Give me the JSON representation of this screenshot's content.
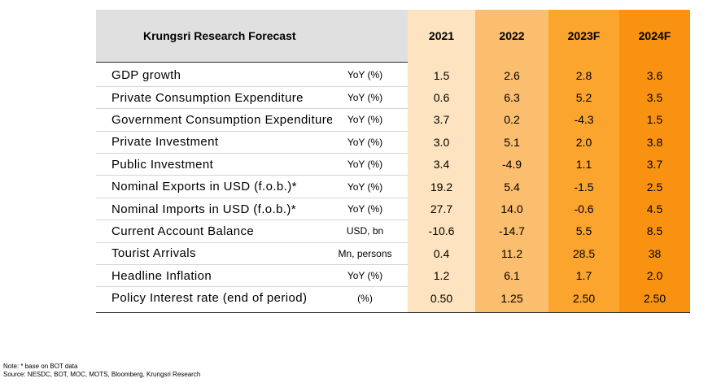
{
  "table": {
    "title": "Krungsri Research Forecast",
    "years": [
      "2021",
      "2022",
      "2023F",
      "2024F"
    ],
    "colors": {
      "header_bg": "#e0e0e0",
      "col_2021": "#fde3bf",
      "col_2022": "#fbbd6e",
      "col_2023F": "#fba42e",
      "col_2024F": "#fa9211"
    },
    "rows": [
      {
        "label": "GDP growth",
        "unit": "YoY (%)",
        "values": [
          "1.5",
          "2.6",
          "2.8",
          "3.6"
        ]
      },
      {
        "label": "Private Consumption Expenditure",
        "unit": "YoY (%)",
        "values": [
          "0.6",
          "6.3",
          "5.2",
          "3.5"
        ]
      },
      {
        "label": "Government Consumption Expenditure",
        "unit": "YoY (%)",
        "values": [
          "3.7",
          "0.2",
          "-4.3",
          "1.5"
        ]
      },
      {
        "label": "Private Investment",
        "unit": "YoY (%)",
        "values": [
          "3.0",
          "5.1",
          "2.0",
          "3.8"
        ]
      },
      {
        "label": "Public Investment",
        "unit": "YoY (%)",
        "values": [
          "3.4",
          "-4.9",
          "1.1",
          "3.7"
        ]
      },
      {
        "label": "Nominal Exports in USD (f.o.b.)*",
        "unit": "YoY (%)",
        "values": [
          "19.2",
          "5.4",
          "-1.5",
          "2.5"
        ]
      },
      {
        "label": "Nominal Imports in USD (f.o.b.)*",
        "unit": "YoY (%)",
        "values": [
          "27.7",
          "14.0",
          "-0.6",
          "4.5"
        ]
      },
      {
        "label": "Current Account Balance",
        "unit": "USD, bn",
        "values": [
          "-10.6",
          "-14.7",
          "5.5",
          "8.5"
        ]
      },
      {
        "label": "Tourist Arrivals",
        "unit": "Mn, persons",
        "values": [
          "0.4",
          "11.2",
          "28.5",
          "38"
        ]
      },
      {
        "label": "Headline Inflation",
        "unit": "YoY (%)",
        "values": [
          "1.2",
          "6.1",
          "1.7",
          "2.0"
        ]
      },
      {
        "label": "Policy Interest rate (end of period)",
        "unit": "(%)",
        "values": [
          "0.50",
          "1.25",
          "2.50",
          "2.50"
        ]
      }
    ]
  },
  "footnotes": {
    "note": "Note: * base on BOT data",
    "source": "Source: NESDC, BOT, MOC, MOTS, Bloomberg, Krungsri Research"
  }
}
